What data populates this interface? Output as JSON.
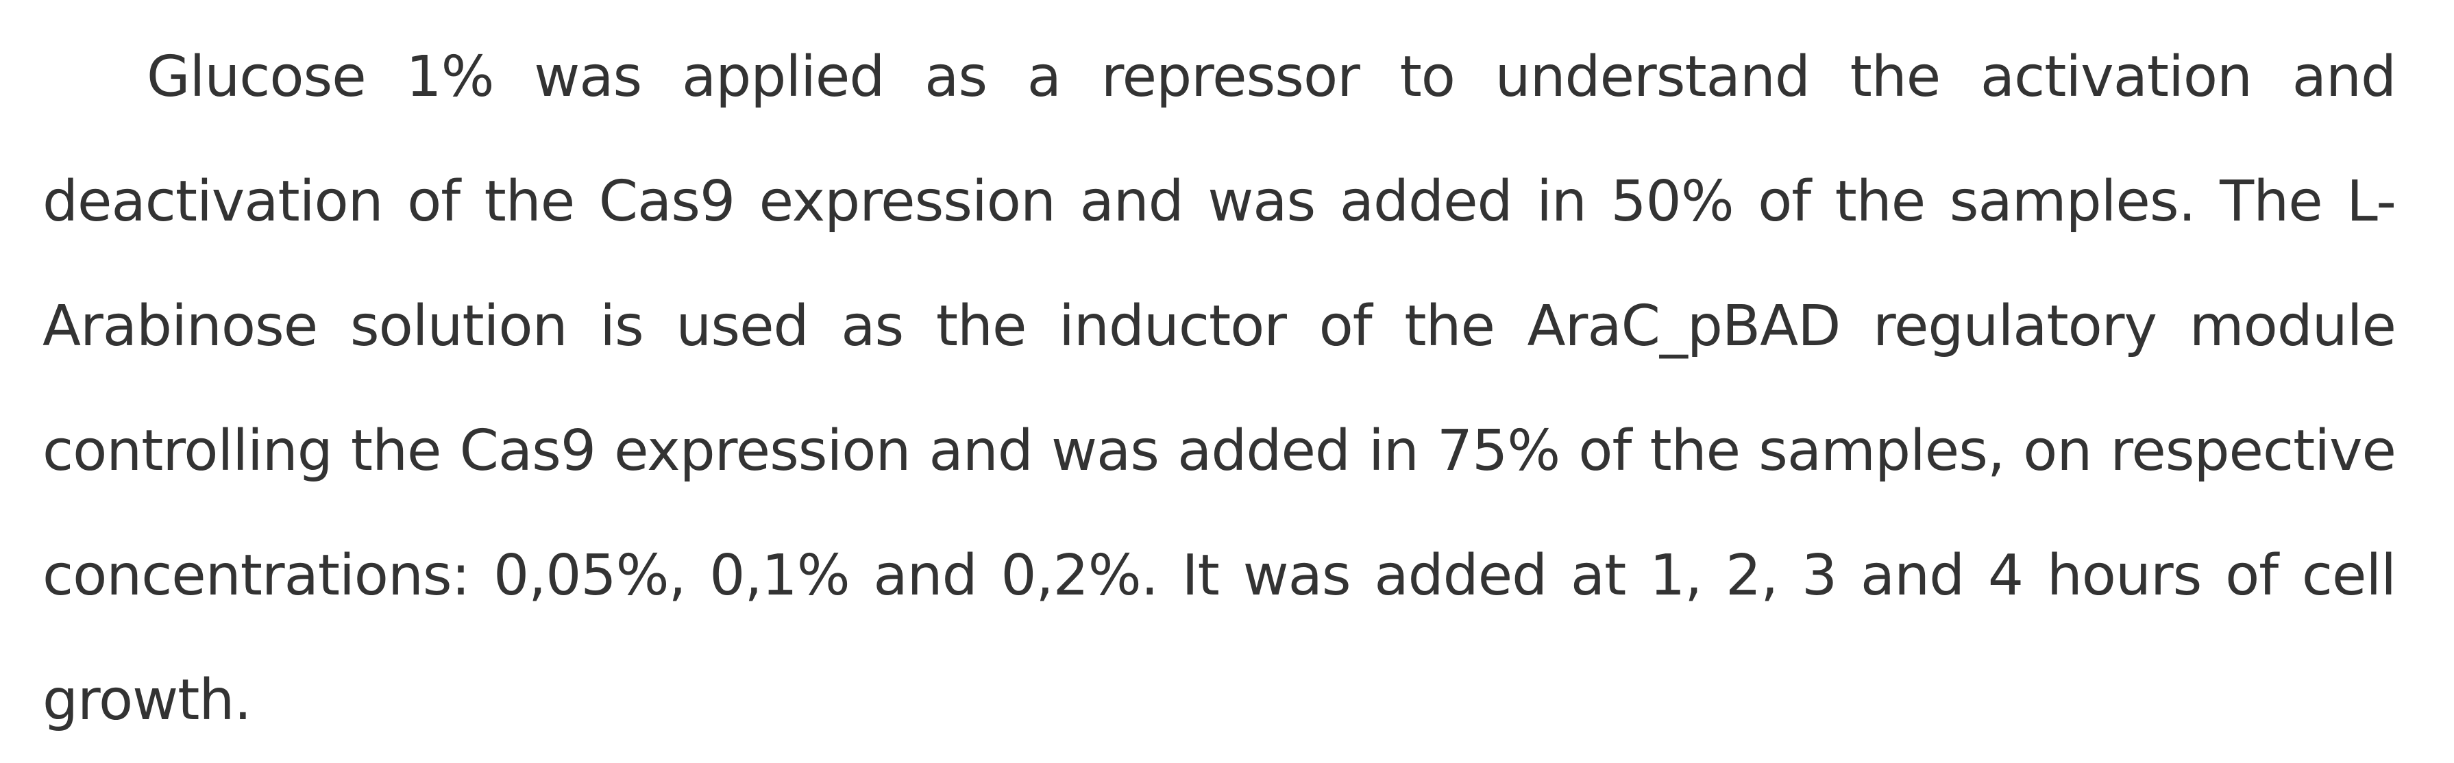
{
  "document": {
    "paragraph": "Glucose 1% was applied as a repressor to understand the activation and deactivation of the Cas9 expression and was added in 50% of the samples. The L-Arabinose solution is used as the inductor of the AraC_pBAD regulatory module controlling the Cas9 expression and was added in 75% of the samples, on respective concentrations: 0,05%, 0,1% and 0,2%. It was added at 1, 2, 3 and 4 hours of cell growth."
  }
}
